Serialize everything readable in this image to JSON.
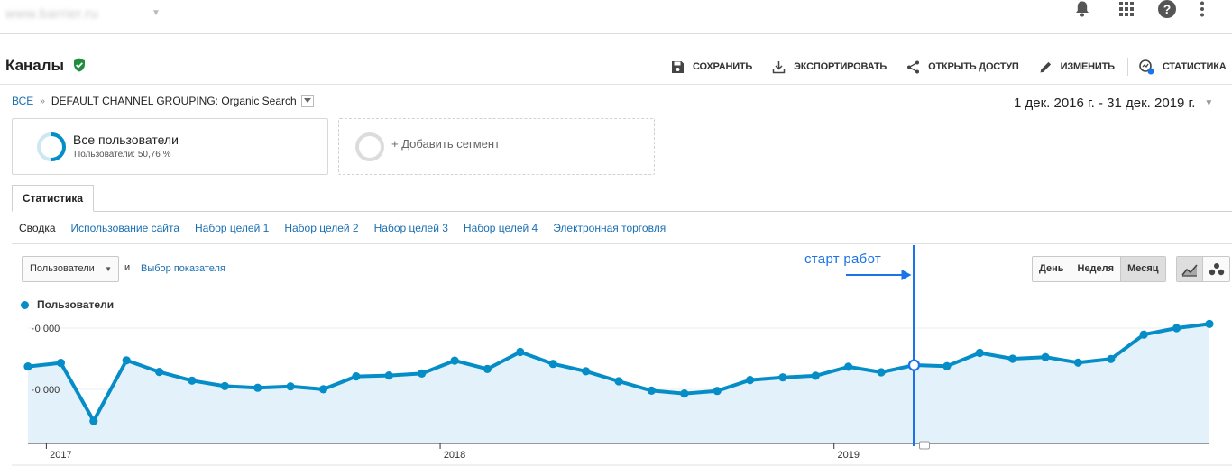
{
  "header": {
    "site_name": "www.barrier.ru",
    "icons": [
      "bell-icon",
      "apps-grid-icon",
      "help-icon",
      "more-vertical-icon"
    ]
  },
  "report": {
    "title": "Каналы",
    "actions": [
      {
        "label": "СОХРАНИТЬ",
        "icon": "save-icon"
      },
      {
        "label": "ЭКСПОРТИРОВАТЬ",
        "icon": "download-icon"
      },
      {
        "label": "ОТКРЫТЬ ДОСТУП",
        "icon": "share-icon"
      },
      {
        "label": "ИЗМЕНИТЬ",
        "icon": "pencil-icon"
      },
      {
        "label": "СТАТИСТИКА",
        "icon": "insights-icon"
      }
    ]
  },
  "breadcrumb": {
    "root": "ВСЕ",
    "separator": "»",
    "current": "DEFAULT CHANNEL GROUPING: Organic Search"
  },
  "date_range": "1 дек. 2016 г. - 31 дек. 2019 г.",
  "segments": {
    "active": {
      "name": "Все пользователи",
      "subtitle": "Пользователи: 50,76 %",
      "share": 0.5076
    },
    "add_label": "+ Добавить сегмент"
  },
  "tabs": {
    "active": "Статистика",
    "subtabs": [
      "Сводка",
      "Использование сайта",
      "Набор целей 1",
      "Набор целей 2",
      "Набор целей 3",
      "Набор целей 4",
      "Электронная торговля"
    ]
  },
  "controls": {
    "metric": "Пользователи",
    "and": "и",
    "pick_metric": "Выбор показателя",
    "periods": [
      "День",
      "Неделя",
      "Месяц"
    ],
    "selected_period": "Месяц"
  },
  "chart_data": {
    "type": "area",
    "series": [
      {
        "name": "Пользователи",
        "color": "#058dc7",
        "values": [
          18950,
          19500,
          10500,
          19900,
          18100,
          16750,
          15900,
          15650,
          15850,
          15400,
          17400,
          17550,
          17850,
          19850,
          18550,
          21200,
          19350,
          18200,
          16650,
          15200,
          14750,
          15150,
          16850,
          17250,
          17500,
          18900,
          18050,
          19150,
          19000,
          21050,
          20150,
          20400,
          19550,
          20100,
          23900,
          24900,
          25550
        ]
      }
    ],
    "y_tick_labels": [
      "·0 000",
      "·0 000"
    ],
    "x_tick_labels": [
      "2017",
      "2018",
      "2019"
    ],
    "ylim": [
      7000,
      27000
    ],
    "grid": true,
    "legend_position": "top-left",
    "annotation": {
      "text": "старт работ",
      "at_index": 27,
      "color": "#1a73e8"
    }
  }
}
